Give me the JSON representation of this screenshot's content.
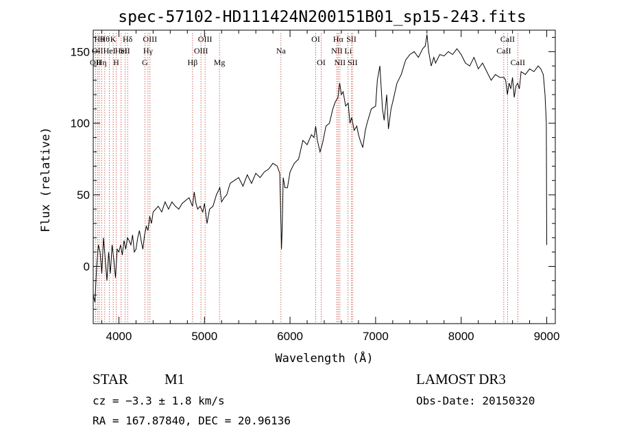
{
  "chart_data": {
    "type": "line",
    "title": "spec-57102-HD111424N200151B01_sp15-243.fits",
    "xlabel": "Wavelength (Å)",
    "ylabel": "Flux (relative)",
    "xlim": [
      3700,
      9100
    ],
    "ylim": [
      -40,
      165
    ],
    "xticks": [
      4000,
      5000,
      6000,
      7000,
      8000,
      9000
    ],
    "yticks": [
      0,
      50,
      100,
      150
    ],
    "grid": false,
    "series": [
      {
        "x": [
          3700,
          3720,
          3740,
          3760,
          3780,
          3800,
          3820,
          3840,
          3860,
          3880,
          3900,
          3920,
          3940,
          3960,
          3980,
          4000,
          4020,
          4040,
          4060,
          4080,
          4100,
          4120,
          4140,
          4160,
          4180,
          4200,
          4220,
          4240,
          4260,
          4280,
          4300,
          4320,
          4340,
          4360,
          4380,
          4400,
          4430,
          4460,
          4500,
          4540,
          4580,
          4620,
          4660,
          4700,
          4740,
          4780,
          4820,
          4860,
          4880,
          4900,
          4920,
          4950,
          4980,
          5000,
          5030,
          5060,
          5100,
          5140,
          5180,
          5200,
          5230,
          5260,
          5300,
          5350,
          5400,
          5450,
          5500,
          5550,
          5600,
          5650,
          5700,
          5750,
          5800,
          5850,
          5880,
          5900,
          5910,
          5920,
          5940,
          5970,
          6000,
          6050,
          6100,
          6150,
          6200,
          6250,
          6280,
          6300,
          6320,
          6350,
          6380,
          6420,
          6460,
          6500,
          6530,
          6560,
          6580,
          6600,
          6620,
          6650,
          6680,
          6700,
          6720,
          6750,
          6780,
          6800,
          6820,
          6850,
          6880,
          6900,
          6950,
          7000,
          7020,
          7050,
          7080,
          7100,
          7130,
          7150,
          7180,
          7200,
          7250,
          7300,
          7350,
          7400,
          7450,
          7500,
          7550,
          7580,
          7600,
          7620,
          7650,
          7680,
          7700,
          7750,
          7800,
          7850,
          7900,
          7950,
          8000,
          8050,
          8100,
          8150,
          8200,
          8250,
          8300,
          8350,
          8400,
          8450,
          8500,
          8520,
          8540,
          8560,
          8580,
          8600,
          8620,
          8640,
          8660,
          8680,
          8700,
          8750,
          8800,
          8850,
          8900,
          8930,
          8960,
          8980,
          8995,
          9000
        ],
        "y": [
          -20,
          -25,
          0,
          15,
          10,
          -5,
          20,
          5,
          -10,
          10,
          -5,
          15,
          5,
          -8,
          12,
          10,
          15,
          8,
          18,
          12,
          20,
          18,
          15,
          22,
          10,
          12,
          20,
          25,
          18,
          12,
          22,
          28,
          25,
          35,
          30,
          38,
          40,
          42,
          38,
          45,
          40,
          45,
          42,
          40,
          44,
          46,
          48,
          42,
          52,
          44,
          40,
          42,
          38,
          44,
          30,
          40,
          42,
          50,
          55,
          45,
          48,
          50,
          58,
          60,
          62,
          56,
          64,
          58,
          65,
          62,
          66,
          68,
          72,
          70,
          65,
          12,
          30,
          62,
          55,
          55,
          66,
          72,
          75,
          88,
          85,
          92,
          90,
          98,
          88,
          80,
          86,
          98,
          100,
          110,
          115,
          118,
          128,
          120,
          122,
          112,
          114,
          100,
          104,
          95,
          98,
          92,
          88,
          83,
          95,
          100,
          110,
          112,
          130,
          140,
          110,
          102,
          120,
          96,
          110,
          115,
          128,
          134,
          144,
          148,
          150,
          146,
          152,
          154,
          162,
          150,
          140,
          146,
          142,
          148,
          147,
          150,
          148,
          152,
          148,
          142,
          140,
          146,
          138,
          142,
          136,
          130,
          134,
          132,
          132,
          130,
          120,
          128,
          124,
          132,
          118,
          126,
          128,
          124,
          136,
          134,
          138,
          136,
          140,
          138,
          134,
          120,
          100,
          15
        ]
      }
    ],
    "line_markers": [
      {
        "x": 3727,
        "label": "OII",
        "row": 2
      },
      {
        "x": 3750,
        "label": "OII",
        "row": 1
      },
      {
        "x": 3770,
        "label": "Hθ",
        "row": 0
      },
      {
        "x": 3797,
        "label": "Hη",
        "row": 2
      },
      {
        "x": 3835,
        "label": "Hθ",
        "row": 0
      },
      {
        "x": 3889,
        "label": "HeI",
        "row": 1
      },
      {
        "x": 3933,
        "label": "K",
        "row": 0
      },
      {
        "x": 3968,
        "label": "H",
        "row": 2
      },
      {
        "x": 4026,
        "label": "HeI",
        "row": 1
      },
      {
        "x": 4072,
        "label": "SII",
        "row": 1
      },
      {
        "x": 4102,
        "label": "Hδ",
        "row": 0
      },
      {
        "x": 4304,
        "label": "G",
        "row": 2
      },
      {
        "x": 4340,
        "label": "Hγ",
        "row": 1
      },
      {
        "x": 4363,
        "label": "OIII",
        "row": 0
      },
      {
        "x": 4861,
        "label": "Hβ",
        "row": 2
      },
      {
        "x": 4959,
        "label": "OIII",
        "row": 1
      },
      {
        "x": 5007,
        "label": "OIII",
        "row": 0
      },
      {
        "x": 5175,
        "label": "Mg",
        "row": 2
      },
      {
        "x": 5894,
        "label": "Na",
        "row": 1
      },
      {
        "x": 6300,
        "label": "OI",
        "row": 0
      },
      {
        "x": 6364,
        "label": "OI",
        "row": 2
      },
      {
        "x": 6548,
        "label": "NII",
        "row": 1
      },
      {
        "x": 6563,
        "label": "Hα",
        "row": 0
      },
      {
        "x": 6583,
        "label": "NII",
        "row": 2
      },
      {
        "x": 6678,
        "label": "Li",
        "row": 1
      },
      {
        "x": 6717,
        "label": "SII",
        "row": 0
      },
      {
        "x": 6731,
        "label": "SII",
        "row": 2
      },
      {
        "x": 8498,
        "label": "CaII",
        "row": 1
      },
      {
        "x": 8542,
        "label": "CaII",
        "row": 0
      },
      {
        "x": 8662,
        "label": "CaII",
        "row": 2
      }
    ]
  },
  "info": {
    "class": "STAR",
    "subclass": "M1",
    "survey": "LAMOST DR3",
    "cz": "cz = −3.3 ± 1.8 km/s",
    "obs_date": "Obs-Date: 20150320",
    "coords": "RA = 167.87840, DEC =  20.96136"
  }
}
